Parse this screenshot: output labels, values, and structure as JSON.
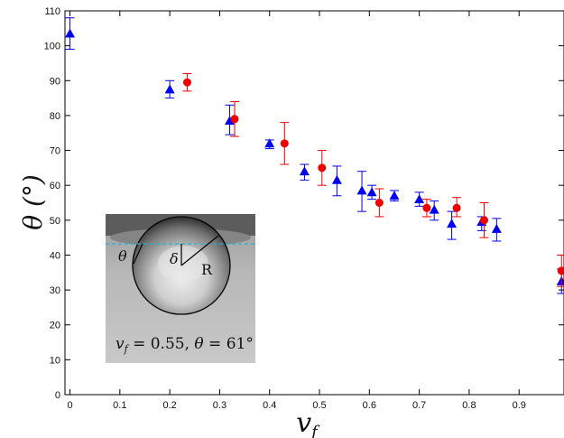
{
  "chart_data": {
    "type": "scatter",
    "xlabel": "v",
    "xlabel_sub": "f",
    "ylabel": "θ (°)",
    "xlim": [
      -0.01,
      0.99
    ],
    "ylim": [
      0,
      110
    ],
    "x_ticks": [
      0,
      0.1,
      0.2,
      0.3,
      0.4,
      0.5,
      0.6,
      0.7,
      0.8,
      0.9
    ],
    "x_tick_labels": [
      "0",
      "0.1",
      "0.2",
      "0.3",
      "0.4",
      "0.5",
      "0.6",
      "0.7",
      "0.8",
      "0.9"
    ],
    "y_ticks": [
      0,
      10,
      20,
      30,
      40,
      50,
      60,
      70,
      80,
      90,
      100,
      110
    ],
    "y_tick_labels": [
      "0",
      "10",
      "20",
      "30",
      "40",
      "50",
      "60",
      "70",
      "80",
      "90",
      "100",
      "110"
    ],
    "grid": false,
    "series": [
      {
        "marker": "triangle",
        "color": "#0000ee",
        "points": [
          {
            "x": 0.0,
            "y": 103.5,
            "lo": 99.0,
            "hi": 108.0
          },
          {
            "x": 0.2,
            "y": 87.5,
            "lo": 85.0,
            "hi": 90.0
          },
          {
            "x": 0.32,
            "y": 78.5,
            "lo": 74.5,
            "hi": 83.0
          },
          {
            "x": 0.4,
            "y": 72.0,
            "lo": 70.5,
            "hi": 73.0
          },
          {
            "x": 0.47,
            "y": 64.0,
            "lo": 61.5,
            "hi": 66.0
          },
          {
            "x": 0.535,
            "y": 61.5,
            "lo": 57.0,
            "hi": 65.5
          },
          {
            "x": 0.585,
            "y": 58.5,
            "lo": 52.5,
            "hi": 64.0
          },
          {
            "x": 0.605,
            "y": 58.0,
            "lo": 56.0,
            "hi": 60.0
          },
          {
            "x": 0.65,
            "y": 57.0,
            "lo": 55.5,
            "hi": 58.5
          },
          {
            "x": 0.7,
            "y": 56.0,
            "lo": 54.0,
            "hi": 58.0
          },
          {
            "x": 0.73,
            "y": 53.0,
            "lo": 50.0,
            "hi": 55.5
          },
          {
            "x": 0.765,
            "y": 49.0,
            "lo": 44.5,
            "hi": 52.5
          },
          {
            "x": 0.825,
            "y": 49.5,
            "lo": 47.0,
            "hi": 51.0
          },
          {
            "x": 0.855,
            "y": 47.5,
            "lo": 44.0,
            "hi": 50.5
          },
          {
            "x": 0.985,
            "y": 32.5,
            "lo": 29.0,
            "hi": 36.0
          }
        ]
      },
      {
        "marker": "circle",
        "color": "#ee0000",
        "points": [
          {
            "x": 0.235,
            "y": 89.5,
            "lo": 87.0,
            "hi": 92.0
          },
          {
            "x": 0.33,
            "y": 79.0,
            "lo": 74.0,
            "hi": 84.0
          },
          {
            "x": 0.43,
            "y": 72.0,
            "lo": 66.0,
            "hi": 78.0
          },
          {
            "x": 0.505,
            "y": 65.0,
            "lo": 60.0,
            "hi": 70.0
          },
          {
            "x": 0.62,
            "y": 55.0,
            "lo": 51.0,
            "hi": 59.0
          },
          {
            "x": 0.715,
            "y": 53.5,
            "lo": 51.0,
            "hi": 56.0
          },
          {
            "x": 0.775,
            "y": 53.5,
            "lo": 51.0,
            "hi": 56.5
          },
          {
            "x": 0.83,
            "y": 50.0,
            "lo": 45.0,
            "hi": 55.0
          },
          {
            "x": 0.985,
            "y": 35.5,
            "lo": 31.0,
            "hi": 40.0
          }
        ]
      }
    ]
  },
  "inset": {
    "caption_v": "v",
    "caption_sub": "f",
    "caption_rest": " = 0.55, ",
    "caption_theta": "θ",
    "caption_value": " = 61°",
    "label_theta": "θ",
    "label_delta": "δ",
    "label_R": "R",
    "line_color": "#22b5cf"
  }
}
